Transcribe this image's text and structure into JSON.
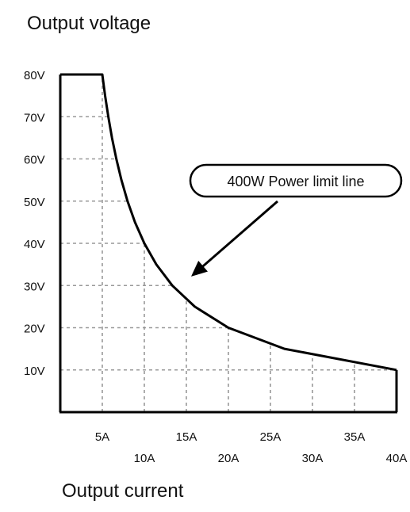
{
  "chart_data": {
    "type": "line",
    "ylabel": "Output voltage",
    "xlabel": "Output current",
    "xlim": [
      0,
      40
    ],
    "ylim": [
      0,
      80
    ],
    "x_ticks": [
      {
        "value": 5,
        "label": "5A",
        "row": "upper"
      },
      {
        "value": 10,
        "label": "10A",
        "row": "lower"
      },
      {
        "value": 15,
        "label": "15A",
        "row": "upper"
      },
      {
        "value": 20,
        "label": "20A",
        "row": "lower"
      },
      {
        "value": 25,
        "label": "25A",
        "row": "upper"
      },
      {
        "value": 30,
        "label": "30A",
        "row": "lower"
      },
      {
        "value": 35,
        "label": "35A",
        "row": "upper"
      },
      {
        "value": 40,
        "label": "40A",
        "row": "lower"
      }
    ],
    "y_ticks": [
      {
        "value": 10,
        "label": "10V"
      },
      {
        "value": 20,
        "label": "20V"
      },
      {
        "value": 30,
        "label": "30V"
      },
      {
        "value": 40,
        "label": "40V"
      },
      {
        "value": 50,
        "label": "50V"
      },
      {
        "value": 60,
        "label": "60V"
      },
      {
        "value": 70,
        "label": "70V"
      },
      {
        "value": 80,
        "label": "80V"
      }
    ],
    "grid": true,
    "series": [
      {
        "x": [
          0,
          5,
          5,
          5.333,
          5.714,
          6.154,
          6.667,
          7.273,
          8,
          8.889,
          10,
          11.429,
          13.333,
          16,
          20,
          26.667,
          40
        ],
        "y": [
          80,
          80,
          80,
          75,
          70,
          65,
          60,
          55,
          50,
          45,
          40,
          35,
          30,
          25,
          20,
          15,
          10
        ]
      },
      {
        "x": [
          40,
          40
        ],
        "y": [
          10,
          0
        ]
      }
    ],
    "annotations": [
      {
        "text": "400W  Power limit line",
        "arrow_to": {
          "x": 15,
          "y": 31
        }
      }
    ]
  }
}
